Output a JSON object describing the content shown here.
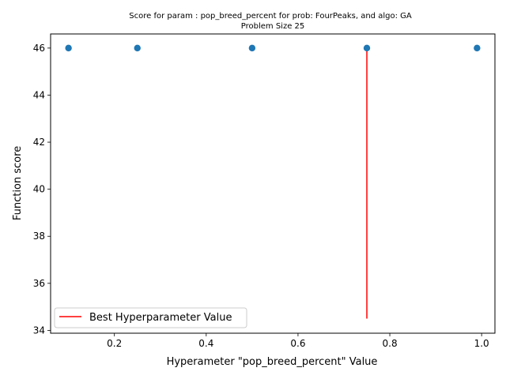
{
  "chart_data": {
    "type": "scatter",
    "title": "Score for param : pop_breed_percent for prob: FourPeaks, and algo: GA",
    "subtitle": "Problem Size 25",
    "xlabel": "Hyperameter \"pop_breed_percent\" Value",
    "ylabel": "Function score",
    "xlim": [
      0.061,
      1.029
    ],
    "ylim": [
      33.88,
      46.6
    ],
    "x_ticks": [
      0.2,
      0.4,
      0.6,
      0.8,
      1.0
    ],
    "x_tick_labels": [
      "0.2",
      "0.4",
      "0.6",
      "0.8",
      "1.0"
    ],
    "y_ticks": [
      34,
      36,
      38,
      40,
      42,
      44,
      46
    ],
    "y_tick_labels": [
      "34",
      "36",
      "38",
      "40",
      "42",
      "44",
      "46"
    ],
    "grid": false,
    "series": [
      {
        "marker": "circle",
        "color": "#1f77b4",
        "x": [
          0.1,
          0.25,
          0.5,
          0.75,
          0.99
        ],
        "y": [
          46,
          46,
          46,
          46,
          46
        ]
      }
    ],
    "vline": {
      "name": "Best Hyperparameter Value",
      "x": 0.75,
      "ymin": 34.5,
      "ymax": 46,
      "color": "#ff0000"
    },
    "legend": {
      "placement": "lower-left",
      "entries": [
        "Best Hyperparameter Value"
      ]
    }
  }
}
